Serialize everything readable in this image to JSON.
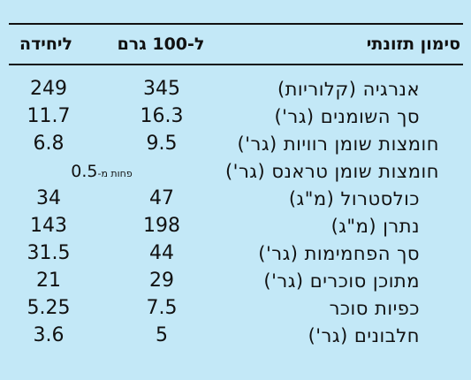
{
  "header": {
    "label": "סימון תזונתי",
    "per_100": "ל-100 גרם",
    "per_unit": "ליחידה"
  },
  "rows": [
    {
      "label": "אנרגיה (קלוריות)",
      "per_100": "345",
      "per_unit": "249"
    },
    {
      "label": "סך השומנים (גר')",
      "per_100": "16.3",
      "per_unit": "11.7"
    },
    {
      "label": "חומצות שומן רוויות (גר')",
      "per_100": "9.5",
      "per_unit": "6.8"
    },
    {
      "label": "חומצות שומן טראנס (גר')",
      "span_text": "פחות מ-",
      "span_value": "0.5"
    },
    {
      "label": "כולסטרול (מ\"ג)",
      "per_100": "47",
      "per_unit": "34"
    },
    {
      "label": "נתרן (מ\"ג)",
      "per_100": "198",
      "per_unit": "143"
    },
    {
      "label": "סך הפחמימות (גר')",
      "per_100": "44",
      "per_unit": "31.5"
    },
    {
      "label": "מתוכן סוכרים (גר')",
      "per_100": "29",
      "per_unit": "21"
    },
    {
      "label": "כפיות סוכר",
      "per_100": "7.5",
      "per_unit": "5.25"
    },
    {
      "label": "חלבונים (גר')",
      "per_100": "5",
      "per_unit": "3.6"
    }
  ],
  "colors": {
    "background": "#c3e8f7",
    "text": "#111111"
  }
}
